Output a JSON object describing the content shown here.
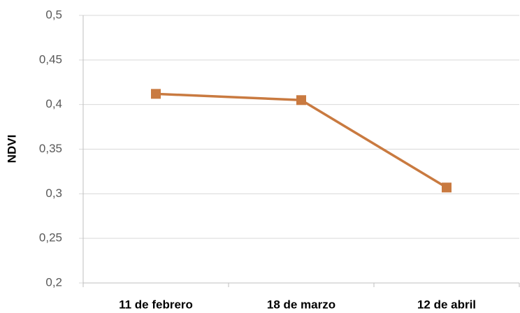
{
  "chart_data": {
    "type": "line",
    "y_label": "NDVI",
    "categories": [
      "11 de febrero",
      "18 de marzo",
      "12 de abril"
    ],
    "series": [
      {
        "name": null,
        "color": "#c97a40",
        "values": [
          0.412,
          0.405,
          0.307
        ]
      }
    ],
    "ylim": [
      0.2,
      0.5
    ],
    "yticks": [
      {
        "value": 0.2,
        "label": "0,2"
      },
      {
        "value": 0.25,
        "label": "0,25"
      },
      {
        "value": 0.3,
        "label": "0,3"
      },
      {
        "value": 0.35,
        "label": "0,35"
      },
      {
        "value": 0.4,
        "label": "0,4"
      },
      {
        "value": 0.45,
        "label": "0,45"
      },
      {
        "value": 0.5,
        "label": "0,5"
      }
    ],
    "grid": true
  }
}
